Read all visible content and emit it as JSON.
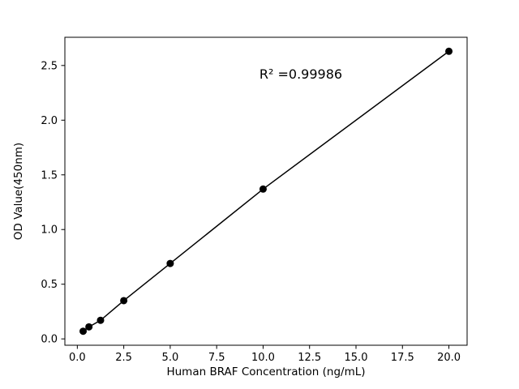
{
  "chart_data": {
    "type": "scatter",
    "title": "",
    "xlabel": "Human BRAF Concentration (ng/mL)",
    "ylabel": "OD Value(450nm)",
    "x": [
      0.313,
      0.625,
      1.25,
      2.5,
      5.0,
      10.0,
      20.0
    ],
    "y": [
      0.07,
      0.11,
      0.17,
      0.35,
      0.69,
      1.37,
      2.63
    ],
    "xlim": [
      -0.67,
      20.98
    ],
    "ylim": [
      -0.058,
      2.758
    ],
    "xticks": [
      0.0,
      2.5,
      5.0,
      7.5,
      10.0,
      12.5,
      15.0,
      17.5,
      20.0
    ],
    "yticks": [
      0.0,
      0.5,
      1.0,
      1.5,
      2.0,
      2.5
    ],
    "annotation": {
      "text": "R² =0.99986",
      "x": 9.8,
      "y": 2.38
    },
    "line": true,
    "grid": false,
    "legend": null,
    "marker_color": "#000000",
    "line_color": "#000000",
    "spine_color": "#000000"
  }
}
